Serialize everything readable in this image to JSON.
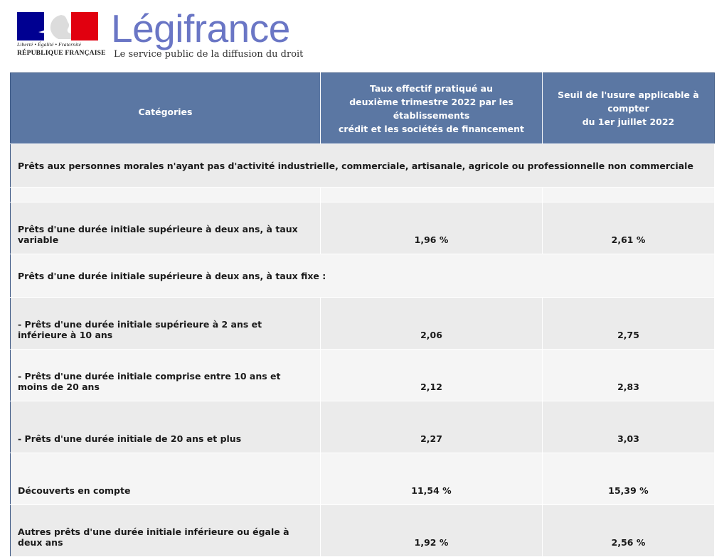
{
  "header": {
    "motto": "Liberté • Égalité • Fraternité",
    "republique": "RÉPUBLIQUE FRANÇAISE",
    "brand": "Légifrance",
    "tagline": "Le service public de la diffusion du droit"
  },
  "colors": {
    "header_bg": "#5b77a3",
    "brand": "#6a76c5",
    "flag_blue": "#000091",
    "flag_red": "#e1000f"
  },
  "table": {
    "headers": {
      "categories": "Catégories",
      "taux_effectif": [
        "Taux effectif pratiqué au",
        "deuxième trimestre 2022 par les établissements",
        "crédit et les sociétés de financement"
      ],
      "seuil_usure": [
        "Seuil de l'usure applicable à compter",
        "du 1er juillet 2022"
      ]
    },
    "section_title": "Prêts aux personnes morales n'ayant pas d'activité industrielle, commerciale, artisanale, agricole ou professionnelle non commerciale",
    "rows": [
      {
        "label": "Prêts d'une durée initiale supérieure à deux ans, à taux variable",
        "taux": "1,96 %",
        "seuil": "2,61 %"
      },
      {
        "label": "Prêts d'une durée initiale supérieure à deux ans, à taux fixe :",
        "taux": "",
        "seuil": ""
      },
      {
        "label": "- Prêts d'une durée initiale supérieure à 2 ans et inférieure à 10 ans",
        "taux": "2,06",
        "seuil": "2,75"
      },
      {
        "label": "- Prêts d'une durée initiale comprise entre 10 ans et moins de 20 ans",
        "taux": "2,12",
        "seuil": "2,83"
      },
      {
        "label": "- Prêts d'une durée initiale de 20 ans et plus",
        "taux": "2,27",
        "seuil": "3,03"
      },
      {
        "label": "Découverts en compte",
        "taux": "11,54 %",
        "seuil": "15,39 %"
      },
      {
        "label": "Autres prêts d'une durée initiale inférieure ou égale à deux ans",
        "taux": "1,92 %",
        "seuil": "2,56 %"
      }
    ]
  }
}
